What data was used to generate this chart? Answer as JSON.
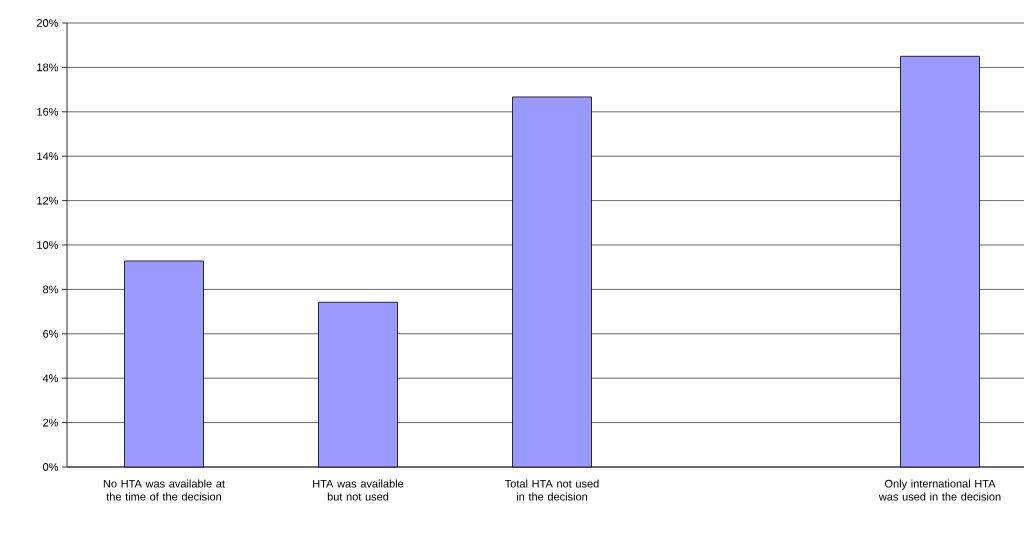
{
  "chart_data": {
    "type": "bar",
    "categories": [
      "No HTA was available at the time of the decision",
      "HTA was available but not used",
      "Total HTA not used in the decision",
      null,
      "Only international HTA was used in the decision"
    ],
    "values": [
      9.28,
      7.42,
      16.67,
      null,
      18.5
    ],
    "color": "#9999ff",
    "ylim": [
      0,
      20
    ],
    "yticks": [
      {
        "value": 0,
        "label": "0%"
      },
      {
        "value": 2,
        "label": "2%"
      },
      {
        "value": 4,
        "label": "4%"
      },
      {
        "value": 6,
        "label": "6%"
      },
      {
        "value": 8,
        "label": "8%"
      },
      {
        "value": 10,
        "label": "10%"
      },
      {
        "value": 12,
        "label": "12%"
      },
      {
        "value": 14,
        "label": "14%"
      },
      {
        "value": 16,
        "label": "16%"
      },
      {
        "value": 18,
        "label": "18%"
      },
      {
        "value": 20,
        "label": "20%"
      }
    ],
    "grid": "y"
  }
}
